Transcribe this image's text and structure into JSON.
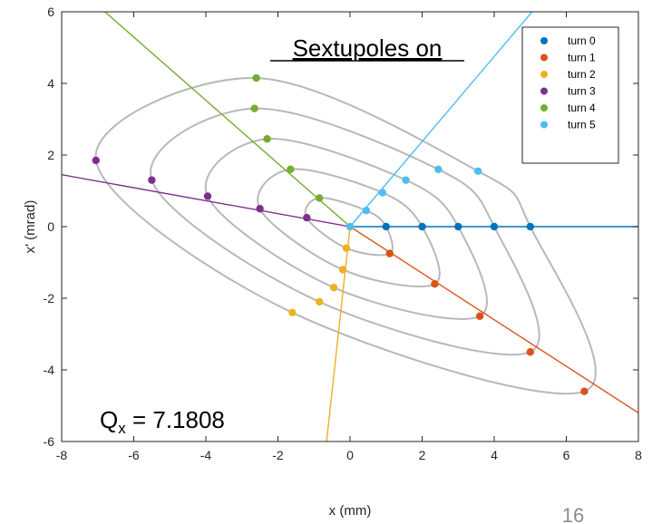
{
  "chart_data": {
    "type": "scatter",
    "title": "",
    "xlabel": "x (mm)",
    "ylabel": "x' (mrad)",
    "xlim": [
      -8,
      8
    ],
    "ylim": [
      -6,
      6
    ],
    "xticks": [
      -8,
      -6,
      -4,
      -2,
      0,
      2,
      4,
      6,
      8
    ],
    "yticks": [
      -6,
      -4,
      -2,
      0,
      2,
      4,
      6
    ],
    "grid": false,
    "legend_position": "top-right",
    "series": [
      {
        "name": "turn 0",
        "color": "#0072BD",
        "points": [
          [
            1.0,
            0
          ],
          [
            2.0,
            0
          ],
          [
            3.0,
            0
          ],
          [
            4.0,
            0
          ],
          [
            5.0,
            0
          ]
        ],
        "line": [
          [
            0,
            0
          ],
          [
            8,
            0
          ]
        ]
      },
      {
        "name": "turn 1",
        "color": "#D95319",
        "points": [
          [
            1.1,
            -0.75
          ],
          [
            2.35,
            -1.6
          ],
          [
            3.6,
            -2.5
          ],
          [
            5.0,
            -3.5
          ],
          [
            6.5,
            -4.6
          ]
        ],
        "line": [
          [
            0,
            0
          ],
          [
            8,
            -5.2
          ]
        ]
      },
      {
        "name": "turn 2",
        "color": "#EDB120",
        "points": [
          [
            -0.1,
            -0.6
          ],
          [
            -0.2,
            -1.2
          ],
          [
            -0.45,
            -1.7
          ],
          [
            -0.85,
            -2.1
          ],
          [
            -1.6,
            -2.4
          ]
        ],
        "line": [
          [
            0,
            0
          ],
          [
            -0.65,
            -6
          ]
        ]
      },
      {
        "name": "turn 3",
        "color": "#7E2F8E",
        "points": [
          [
            -1.2,
            0.25
          ],
          [
            -2.5,
            0.5
          ],
          [
            -3.95,
            0.85
          ],
          [
            -5.5,
            1.3
          ],
          [
            -7.05,
            1.85
          ]
        ],
        "line": [
          [
            0,
            0
          ],
          [
            -8,
            1.45
          ]
        ]
      },
      {
        "name": "turn 4",
        "color": "#77AC30",
        "points": [
          [
            -0.85,
            0.8
          ],
          [
            -1.65,
            1.6
          ],
          [
            -2.3,
            2.45
          ],
          [
            -2.65,
            3.3
          ],
          [
            -2.6,
            4.15
          ]
        ],
        "line": [
          [
            0,
            0
          ],
          [
            -6.8,
            6
          ]
        ]
      },
      {
        "name": "turn 5",
        "color": "#4DBEEE",
        "points": [
          [
            0.45,
            0.45
          ],
          [
            0.9,
            0.95
          ],
          [
            1.55,
            1.3
          ],
          [
            2.45,
            1.6
          ],
          [
            3.55,
            1.55
          ]
        ],
        "line": [
          [
            0,
            0
          ],
          [
            5.05,
            6
          ]
        ]
      }
    ],
    "ellipses": {
      "color": "#b8b8b8",
      "curves": [
        [
          [
            1,
            0
          ],
          [
            0.45,
            0.45
          ],
          [
            -0.85,
            0.8
          ],
          [
            -1.2,
            0.25
          ],
          [
            -0.1,
            -0.6
          ],
          [
            1.1,
            -0.75
          ]
        ],
        [
          [
            2,
            0
          ],
          [
            0.9,
            0.95
          ],
          [
            -1.65,
            1.6
          ],
          [
            -2.5,
            0.5
          ],
          [
            -0.2,
            -1.2
          ],
          [
            2.35,
            -1.6
          ]
        ],
        [
          [
            3,
            0
          ],
          [
            1.55,
            1.3
          ],
          [
            -2.3,
            2.45
          ],
          [
            -3.95,
            0.85
          ],
          [
            -0.45,
            -1.7
          ],
          [
            3.6,
            -2.5
          ]
        ],
        [
          [
            4,
            0
          ],
          [
            2.45,
            1.6
          ],
          [
            -2.65,
            3.3
          ],
          [
            -5.5,
            1.3
          ],
          [
            -0.85,
            -2.1
          ],
          [
            5.0,
            -3.5
          ]
        ],
        [
          [
            5,
            0
          ],
          [
            3.55,
            1.55
          ],
          [
            -2.6,
            4.15
          ],
          [
            -7.05,
            1.85
          ],
          [
            -1.6,
            -2.4
          ],
          [
            6.5,
            -4.6
          ]
        ]
      ]
    },
    "annotations": {
      "title_box": "Sextupoles on",
      "tune_prefix": "Q",
      "tune_sub": "x",
      "tune_value": " = 7.1808"
    }
  },
  "slide": {
    "page_number": "16"
  }
}
